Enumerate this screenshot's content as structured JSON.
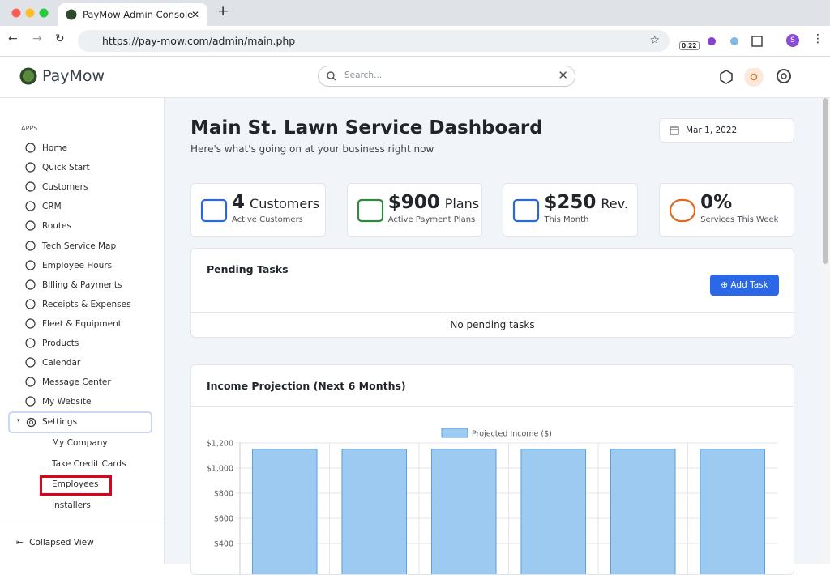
{
  "browser": {
    "tab_title": "PayMow Admin Console",
    "url": "https://pay-mow.com/admin/main.php",
    "extension_badge": "0.22",
    "profile": "S"
  },
  "header": {
    "brand": "PayMow",
    "search_placeholder": "Search..."
  },
  "sidebar": {
    "section": "APPS",
    "items": [
      "Home",
      "Quick Start",
      "Customers",
      "CRM",
      "Routes",
      "Tech Service Map",
      "Employee Hours",
      "Billing & Payments",
      "Receipts & Expenses",
      "Fleet & Equipment",
      "Products",
      "Calendar",
      "Message Center",
      "My Website"
    ],
    "settings": "Settings",
    "sub_items": [
      "My Company",
      "Take Credit Cards",
      "Employees",
      "Installers"
    ],
    "footer": "Collapsed View"
  },
  "main": {
    "title": "Main St. Lawn Service Dashboard",
    "subtitle": "Here's what's going on at your business right now",
    "date": "Mar 1, 2022"
  },
  "stats": [
    {
      "value": "4",
      "unit": "Customers",
      "label": "Active Customers"
    },
    {
      "value": "$900",
      "unit": "Plans",
      "label": "Active Payment Plans"
    },
    {
      "value": "$250",
      "unit": "Rev.",
      "label": "This Month"
    },
    {
      "value": "0%",
      "label": "Services This Week"
    }
  ],
  "tasks": {
    "title": "Pending Tasks",
    "button": "Add Task",
    "empty": "No pending tasks"
  },
  "chart_data": {
    "type": "bar",
    "title": "Income Projection (Next 6 Months)",
    "categories": [
      null,
      null,
      null,
      null,
      null,
      null
    ],
    "series": [
      {
        "name": "Projected Income ($)",
        "color": "#9ccaf0",
        "values": [
          1150,
          1150,
          1150,
          1150,
          1150,
          1150
        ]
      }
    ],
    "ylim": [
      0,
      1200
    ],
    "yticks": [
      {
        "value": 400,
        "label": "$400"
      },
      {
        "value": 600,
        "label": "$600"
      },
      {
        "value": 800,
        "label": "$800"
      },
      {
        "value": 1000,
        "label": "$1,000"
      },
      {
        "value": 1200,
        "label": "$1,200"
      }
    ],
    "grid": true
  }
}
